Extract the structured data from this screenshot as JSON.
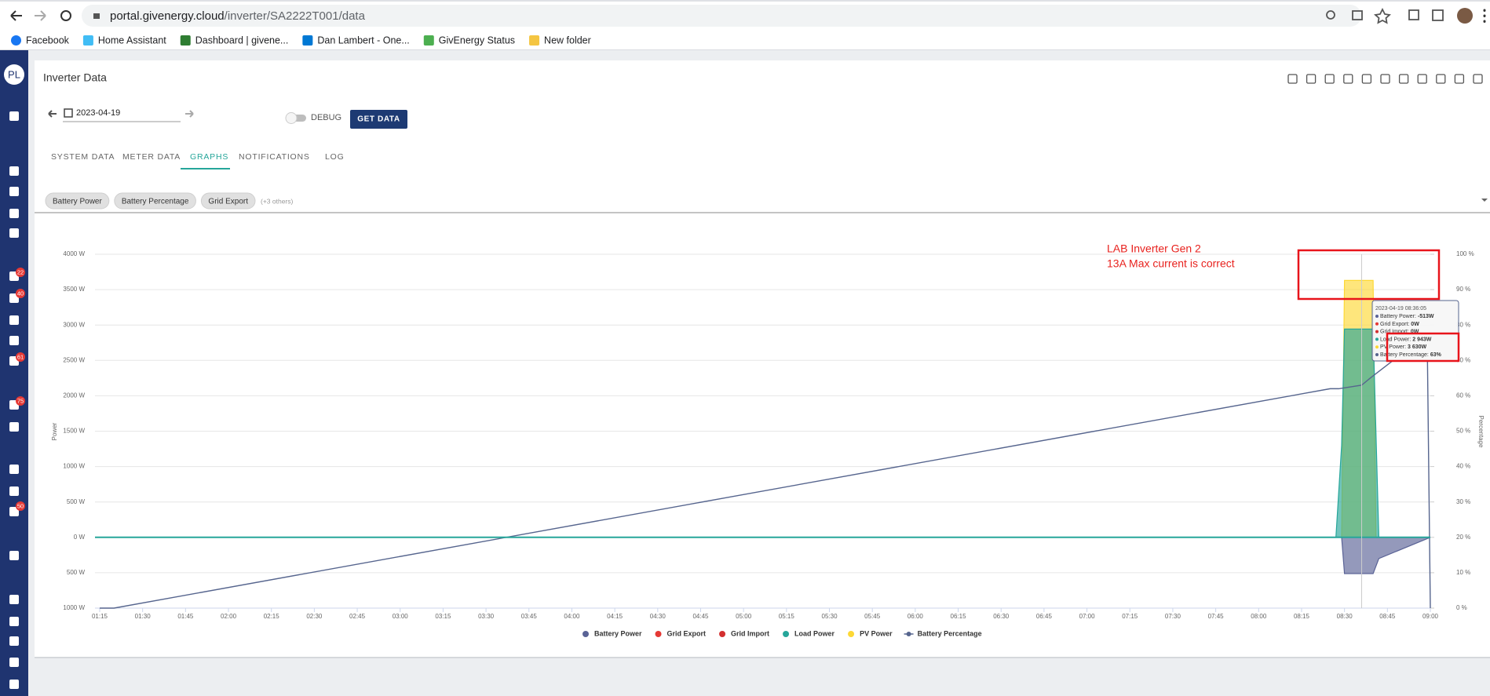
{
  "browser": {
    "url_host": "portal.givenergy.cloud",
    "url_path": "/inverter/SA2222T001/data",
    "bookmarks": [
      "Facebook",
      "Home Assistant",
      "Dashboard | givene...",
      "Dan Lambert - One...",
      "GivEnergy Status",
      "New folder"
    ]
  },
  "sidebar": {
    "avatar": "PL",
    "badges": [
      "22",
      "40",
      "61",
      "75",
      "50"
    ]
  },
  "page": {
    "title": "Inverter Data",
    "date": "2023-04-19",
    "debug": "DEBUG",
    "get_data": "GET DATA",
    "tabs": [
      "SYSTEM DATA",
      "METER DATA",
      "GRAPHS",
      "NOTIFICATIONS",
      "LOG"
    ],
    "chips": [
      "Battery Power",
      "Battery Percentage",
      "Grid Export"
    ],
    "chips_more": "(+3 others)"
  },
  "annotation": {
    "lines": [
      "LAB Inverter Gen 2",
      "13A Max current is correct"
    ]
  },
  "tooltip": {
    "time": "2023-04-19 08:36:05",
    "rows": [
      {
        "label": "Battery Power: ",
        "value": "-513W"
      },
      {
        "label": "Grid Export: ",
        "value": "0W"
      },
      {
        "label": "Grid Import: ",
        "value": "0W"
      },
      {
        "label": "Load Power: ",
        "value": "2 943W"
      },
      {
        "label": "PV Power: ",
        "value": "3 630W"
      },
      {
        "label": "Battery Percentage: ",
        "value": "63%"
      }
    ]
  },
  "chart_data": {
    "type": "area",
    "ylabel": "Power",
    "y2label": "Percentage",
    "xlim": [
      "01:15",
      "09:00"
    ],
    "xticks": [
      "01:15",
      "01:30",
      "01:45",
      "02:00",
      "02:15",
      "02:30",
      "02:45",
      "03:00",
      "03:15",
      "03:30",
      "03:45",
      "04:00",
      "04:15",
      "04:30",
      "04:45",
      "05:00",
      "05:15",
      "05:30",
      "05:45",
      "06:00",
      "06:15",
      "06:30",
      "06:45",
      "07:00",
      "07:15",
      "07:30",
      "07:45",
      "08:00",
      "08:15",
      "08:30",
      "08:45",
      "09:00"
    ],
    "ylim": [
      -1000,
      4000
    ],
    "yticks": [
      {
        "value": -1000,
        "label": "1000 W"
      },
      {
        "value": -500,
        "label": "500 W"
      },
      {
        "value": 0,
        "label": "0 W"
      },
      {
        "value": 500,
        "label": "500 W"
      },
      {
        "value": 1000,
        "label": "1000 W"
      },
      {
        "value": 1500,
        "label": "1500 W"
      },
      {
        "value": 2000,
        "label": "2000 W"
      },
      {
        "value": 2500,
        "label": "2500 W"
      },
      {
        "value": 3000,
        "label": "3000 W"
      },
      {
        "value": 3500,
        "label": "3500 W"
      },
      {
        "value": 4000,
        "label": "4000 W"
      }
    ],
    "y2lim": [
      0,
      100
    ],
    "y2ticks": [
      {
        "value": 0,
        "label": "0 %"
      },
      {
        "value": 10,
        "label": "10 %"
      },
      {
        "value": 20,
        "label": "20 %"
      },
      {
        "value": 30,
        "label": "30 %"
      },
      {
        "value": 40,
        "label": "40 %"
      },
      {
        "value": 50,
        "label": "50 %"
      },
      {
        "value": 60,
        "label": "60 %"
      },
      {
        "value": 70,
        "label": "70 %"
      },
      {
        "value": 80,
        "label": "80 %"
      },
      {
        "value": 90,
        "label": "90 %"
      },
      {
        "value": 100,
        "label": "100 %"
      }
    ],
    "grid": true,
    "series": [
      {
        "name": "Battery Power",
        "type": "area",
        "color": "#5a6396",
        "x": [
          "01:15",
          "08:29",
          "08:30",
          "08:40",
          "08:42",
          "09:00"
        ],
        "values": [
          0,
          0,
          -513,
          -513,
          -300,
          0
        ]
      },
      {
        "name": "Grid Export",
        "type": "line",
        "color": "#e53935",
        "x": [
          "01:15",
          "09:00"
        ],
        "values": [
          0,
          0
        ]
      },
      {
        "name": "Grid Import",
        "type": "line",
        "color": "#d32f2f",
        "x": [
          "01:15",
          "09:00"
        ],
        "values": [
          0,
          0
        ]
      },
      {
        "name": "Load Power",
        "type": "area",
        "color": "#26a69a",
        "x": [
          "01:15",
          "08:27",
          "08:29",
          "08:30",
          "08:40",
          "08:42",
          "09:00"
        ],
        "values": [
          0,
          0,
          1300,
          2943,
          2943,
          0,
          0
        ]
      },
      {
        "name": "PV Power",
        "type": "area",
        "color": "#fdd835",
        "x": [
          "01:15",
          "08:29",
          "08:30",
          "08:40",
          "08:41",
          "09:00"
        ],
        "values": [
          0,
          0,
          3630,
          3630,
          0,
          0
        ]
      },
      {
        "name": "Battery Percentage",
        "type": "line",
        "axis": "y2",
        "color": "#56658e",
        "x": [
          "01:15",
          "01:20",
          "08:25",
          "08:28",
          "08:36",
          "08:39",
          "08:47",
          "08:59",
          "09:00"
        ],
        "values": [
          0,
          0,
          62,
          62,
          63,
          65,
          70,
          70,
          0
        ]
      }
    ]
  }
}
